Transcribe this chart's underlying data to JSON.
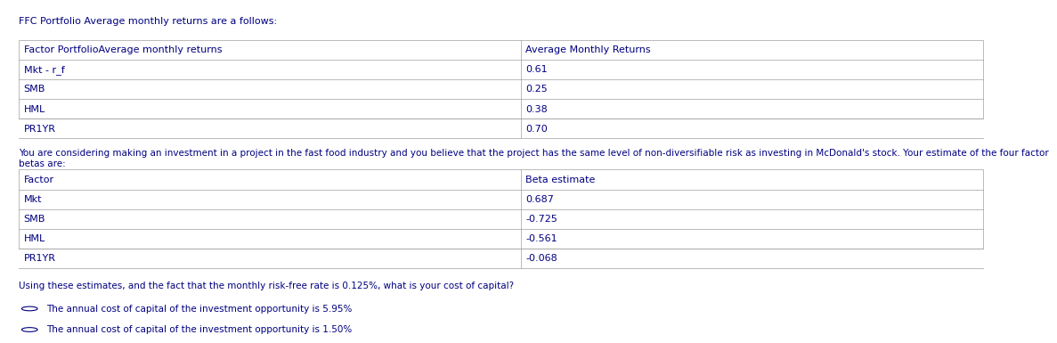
{
  "title": "FFC Portfolio Average monthly returns are a follows:",
  "table1_headers": [
    "Factor PortfolioAverage monthly returns",
    "Average Monthly Returns"
  ],
  "table1_rows": [
    [
      "Mkt - r_f",
      "0.61"
    ],
    [
      "SMB",
      "0.25"
    ],
    [
      "HML",
      "0.38"
    ],
    [
      "PR1YR",
      "0.70"
    ]
  ],
  "paragraph": "You are considering making an investment in a project in the fast food industry and you believe that the project has the same level of non-diversifiable risk as investing in McDonald's stock. Your estimate of the four factor betas are:",
  "table2_headers": [
    "Factor",
    "Beta estimate"
  ],
  "table2_rows": [
    [
      "Mkt",
      "0.687"
    ],
    [
      "SMB",
      "-0.725"
    ],
    [
      "HML",
      "-0.561"
    ],
    [
      "PR1YR",
      "-0.068"
    ]
  ],
  "question": "Using these estimates, and the fact that the monthly risk-free rate is 0.125%, what is your cost of capital?",
  "options": [
    "The annual cost of capital of the investment opportunity is 5.95%",
    "The annual cost of capital of the investment opportunity is 1.50%"
  ],
  "bg_color": "#ffffff",
  "text_color": "#000080",
  "table_border_color": "#a0a0a0",
  "header_bg": "#ffffff",
  "row_bg": "#ffffff",
  "font_size": 8,
  "title_font_size": 8,
  "col_split": 0.52
}
